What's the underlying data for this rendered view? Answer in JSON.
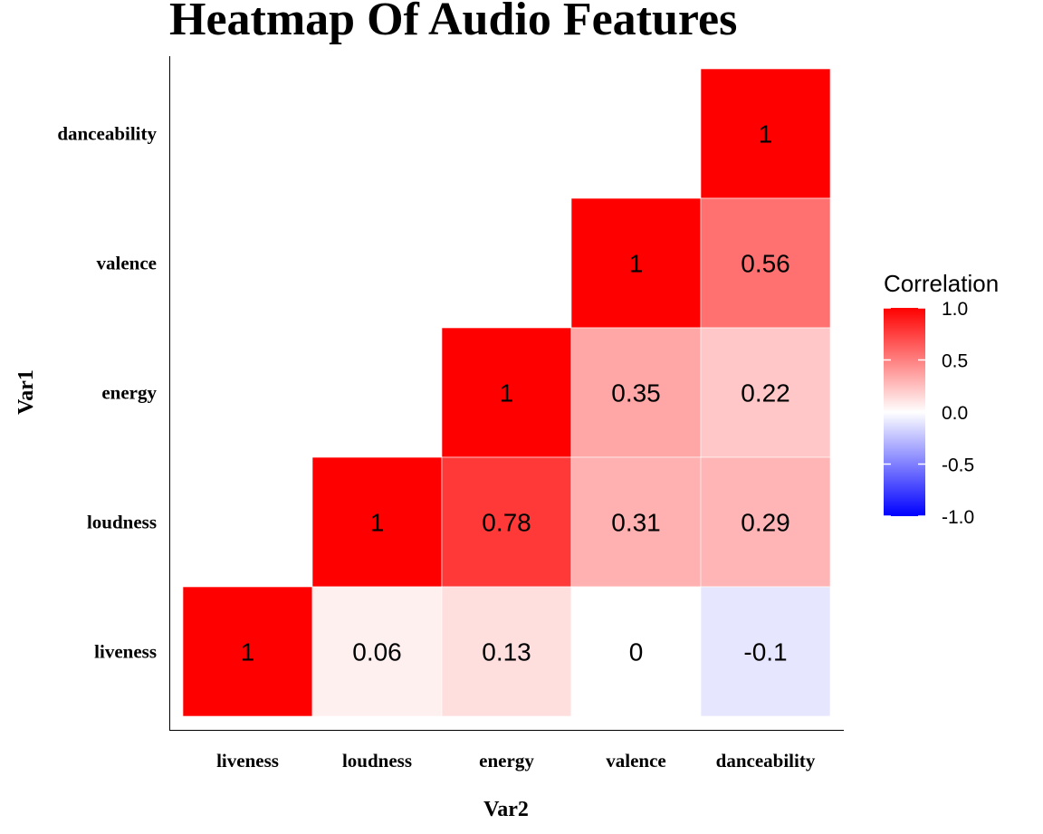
{
  "chart_data": {
    "type": "heatmap",
    "title": "Heatmap Of Audio Features",
    "xlabel": "Var2",
    "ylabel": "Var1",
    "x_categories": [
      "liveness",
      "loudness",
      "energy",
      "valence",
      "danceability"
    ],
    "y_categories": [
      "danceability",
      "valence",
      "energy",
      "loudness",
      "liveness"
    ],
    "cells": [
      {
        "x": "danceability",
        "y": "danceability",
        "value": 1,
        "label": "1"
      },
      {
        "x": "valence",
        "y": "valence",
        "value": 1,
        "label": "1"
      },
      {
        "x": "danceability",
        "y": "valence",
        "value": 0.56,
        "label": "0.56"
      },
      {
        "x": "energy",
        "y": "energy",
        "value": 1,
        "label": "1"
      },
      {
        "x": "valence",
        "y": "energy",
        "value": 0.35,
        "label": "0.35"
      },
      {
        "x": "danceability",
        "y": "energy",
        "value": 0.22,
        "label": "0.22"
      },
      {
        "x": "loudness",
        "y": "loudness",
        "value": 1,
        "label": "1"
      },
      {
        "x": "energy",
        "y": "loudness",
        "value": 0.78,
        "label": "0.78"
      },
      {
        "x": "valence",
        "y": "loudness",
        "value": 0.31,
        "label": "0.31"
      },
      {
        "x": "danceability",
        "y": "loudness",
        "value": 0.29,
        "label": "0.29"
      },
      {
        "x": "liveness",
        "y": "liveness",
        "value": 1,
        "label": "1"
      },
      {
        "x": "loudness",
        "y": "liveness",
        "value": 0.06,
        "label": "0.06"
      },
      {
        "x": "energy",
        "y": "liveness",
        "value": 0.13,
        "label": "0.13"
      },
      {
        "x": "valence",
        "y": "liveness",
        "value": 0,
        "label": "0"
      },
      {
        "x": "danceability",
        "y": "liveness",
        "value": -0.1,
        "label": "-0.1"
      }
    ],
    "legend": {
      "title": "Correlation",
      "placement": "right",
      "min": -1,
      "max": 1,
      "ticks": [
        "1.0",
        "0.5",
        "0.0",
        "-0.5",
        "-1.0"
      ],
      "tick_values": [
        1,
        0.5,
        0,
        -0.5,
        -1
      ],
      "colors": {
        "high": "#ff0000",
        "mid": "#ffffff",
        "low": "#0000ff"
      }
    }
  }
}
